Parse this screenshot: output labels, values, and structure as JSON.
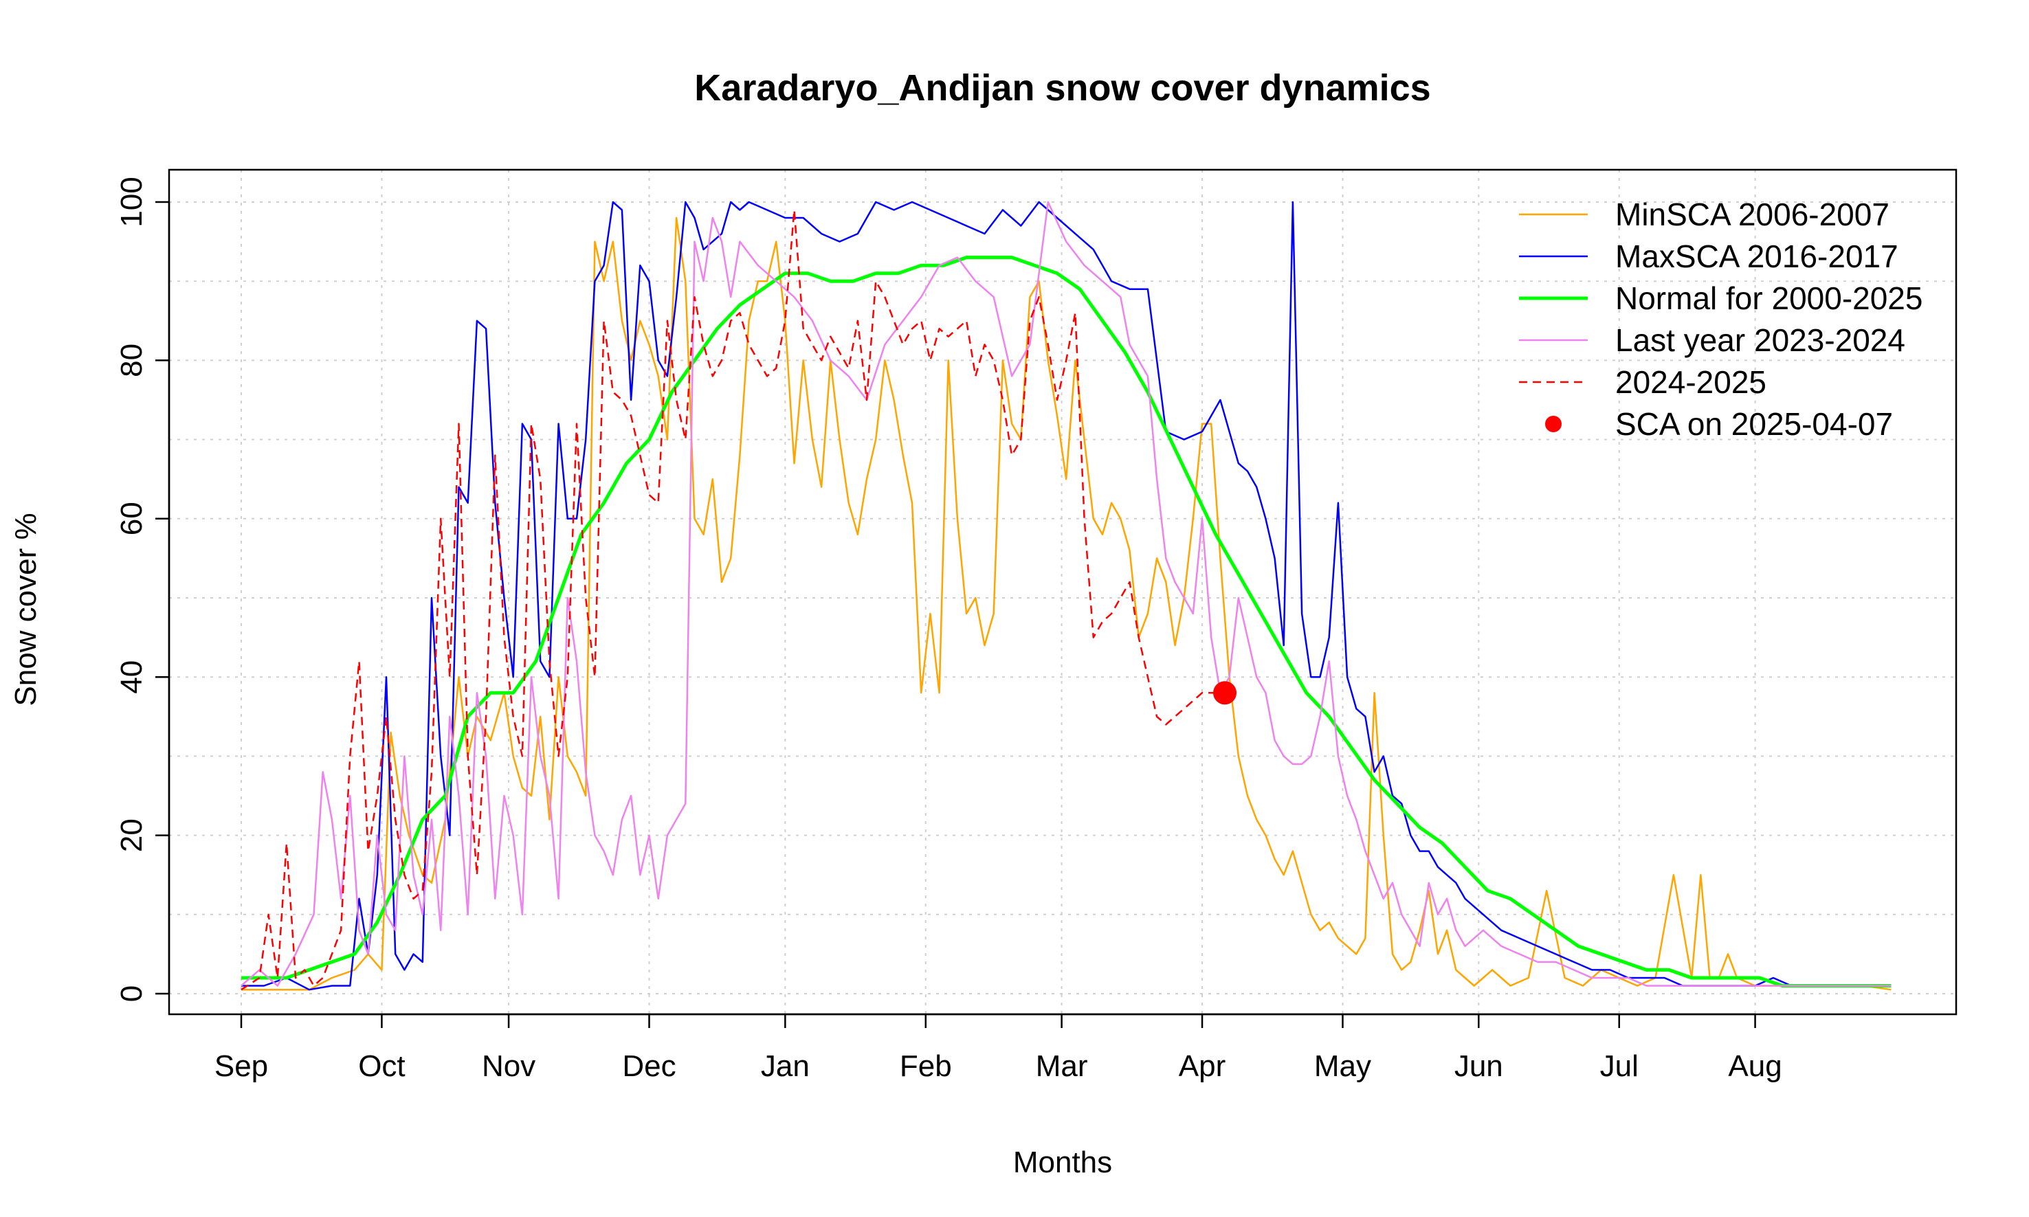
{
  "chart_data": {
    "type": "line",
    "title": "Karadaryo_Andijan snow cover dynamics",
    "xlabel": "Months",
    "ylabel": "Snow cover %",
    "ylim": [
      0,
      100
    ],
    "yticks": [
      0,
      20,
      40,
      60,
      80,
      100
    ],
    "xlim": [
      0,
      365
    ],
    "month_ticks": [
      {
        "label": "Sep",
        "day": 0
      },
      {
        "label": "Oct",
        "day": 31
      },
      {
        "label": "Nov",
        "day": 59
      },
      {
        "label": "Dec",
        "day": 90
      },
      {
        "label": "Jan",
        "day": 120
      },
      {
        "label": "Feb",
        "day": 151
      },
      {
        "label": "Mar",
        "day": 181
      },
      {
        "label": "Apr",
        "day": 212
      },
      {
        "label": "May",
        "day": 243
      },
      {
        "label": "Jun",
        "day": 273
      },
      {
        "label": "Jul",
        "day": 304
      },
      {
        "label": "Aug",
        "day": 334
      }
    ],
    "grid": true,
    "legend_position": "top-right",
    "series": [
      {
        "name": "MinSCA 2006-2007",
        "color": "#FFA500",
        "style": "solid",
        "x": [
          0,
          5,
          10,
          15,
          20,
          25,
          28,
          31,
          33,
          35,
          37,
          40,
          42,
          45,
          48,
          50,
          52,
          55,
          58,
          60,
          62,
          64,
          66,
          68,
          70,
          72,
          74,
          76,
          78,
          80,
          82,
          84,
          86,
          88,
          90,
          92,
          94,
          96,
          98,
          100,
          102,
          104,
          106,
          108,
          110,
          112,
          114,
          116,
          118,
          120,
          122,
          124,
          126,
          128,
          130,
          132,
          134,
          136,
          138,
          140,
          142,
          144,
          146,
          148,
          150,
          152,
          154,
          156,
          158,
          160,
          162,
          164,
          166,
          168,
          170,
          172,
          174,
          176,
          178,
          180,
          182,
          184,
          186,
          188,
          190,
          192,
          194,
          196,
          198,
          200,
          202,
          204,
          206,
          208,
          210,
          212,
          214,
          216,
          218,
          220,
          222,
          224,
          226,
          228,
          230,
          232,
          234,
          236,
          238,
          240,
          242,
          244,
          246,
          248,
          250,
          252,
          254,
          256,
          258,
          260,
          262,
          264,
          266,
          268,
          270,
          272,
          274,
          276,
          278,
          280,
          284,
          288,
          292,
          296,
          300,
          304,
          308,
          312,
          316,
          320,
          322,
          324,
          326,
          328,
          330,
          334,
          340,
          346,
          352,
          358,
          364
        ],
        "values": [
          0.5,
          0.5,
          0.5,
          0.5,
          2,
          3,
          5,
          3,
          33,
          25,
          20,
          15,
          14,
          22,
          40,
          30,
          35,
          32,
          38,
          30,
          26,
          25,
          35,
          22,
          40,
          30,
          28,
          25,
          95,
          90,
          95,
          85,
          80,
          85,
          82,
          78,
          70,
          98,
          90,
          60,
          58,
          65,
          52,
          55,
          68,
          85,
          90,
          90,
          95,
          85,
          67,
          80,
          70,
          64,
          80,
          70,
          62,
          58,
          65,
          70,
          80,
          75,
          68,
          62,
          38,
          48,
          38,
          80,
          60,
          48,
          50,
          44,
          48,
          80,
          72,
          70,
          88,
          90,
          80,
          73,
          65,
          80,
          70,
          60,
          58,
          62,
          60,
          56,
          45,
          48,
          55,
          52,
          44,
          50,
          60,
          72,
          72,
          55,
          40,
          30,
          25,
          22,
          20,
          17,
          15,
          18,
          14,
          10,
          8,
          9,
          7,
          6,
          5,
          7,
          38,
          20,
          5,
          3,
          4,
          8,
          13,
          5,
          8,
          3,
          2,
          1,
          2,
          3,
          2,
          1,
          2,
          13,
          2,
          1,
          3,
          2,
          1,
          2,
          15,
          2,
          15,
          2,
          2,
          5,
          2,
          1,
          1,
          1,
          1,
          1,
          0.5
        ]
      },
      {
        "name": "MaxSCA 2016-2017",
        "color": "#0000FF",
        "style": "solid",
        "x": [
          0,
          5,
          10,
          15,
          20,
          24,
          26,
          28,
          30,
          32,
          34,
          36,
          38,
          40,
          42,
          44,
          46,
          48,
          50,
          52,
          54,
          56,
          58,
          60,
          62,
          64,
          66,
          68,
          70,
          72,
          74,
          76,
          78,
          80,
          82,
          84,
          86,
          88,
          90,
          92,
          94,
          96,
          98,
          100,
          102,
          104,
          106,
          108,
          110,
          112,
          116,
          120,
          124,
          128,
          132,
          136,
          140,
          144,
          148,
          152,
          156,
          160,
          164,
          168,
          172,
          176,
          180,
          184,
          188,
          192,
          196,
          200,
          204,
          208,
          212,
          216,
          220,
          222,
          224,
          226,
          228,
          230,
          232,
          234,
          236,
          238,
          240,
          242,
          244,
          246,
          248,
          250,
          252,
          254,
          256,
          258,
          260,
          262,
          264,
          266,
          268,
          270,
          274,
          278,
          282,
          286,
          290,
          294,
          298,
          302,
          306,
          310,
          314,
          318,
          322,
          326,
          330,
          334,
          338,
          342,
          346,
          350,
          354,
          358,
          364
        ],
        "values": [
          1,
          1,
          2,
          0.5,
          1,
          1,
          12,
          5,
          15,
          40,
          5,
          3,
          5,
          4,
          50,
          30,
          20,
          64,
          62,
          85,
          84,
          62,
          50,
          40,
          72,
          70,
          42,
          40,
          72,
          60,
          60,
          70,
          90,
          92,
          100,
          99,
          75,
          92,
          90,
          80,
          78,
          88,
          100,
          98,
          94,
          95,
          96,
          100,
          99,
          100,
          99,
          98,
          98,
          96,
          95,
          96,
          100,
          99,
          100,
          99,
          98,
          97,
          96,
          99,
          97,
          100,
          98,
          96,
          94,
          90,
          89,
          89,
          71,
          70,
          71,
          75,
          67,
          66,
          64,
          60,
          55,
          44,
          100,
          48,
          40,
          40,
          45,
          62,
          40,
          36,
          35,
          28,
          30,
          25,
          24,
          20,
          18,
          18,
          16,
          15,
          14,
          12,
          10,
          8,
          7,
          6,
          5,
          4,
          3,
          3,
          2,
          2,
          2,
          1,
          1,
          1,
          1,
          1,
          2,
          1,
          1,
          1,
          1,
          1,
          1
        ]
      },
      {
        "name": "Normal for 2000-2025",
        "color": "#00FF00",
        "style": "solid",
        "x": [
          0,
          5,
          10,
          15,
          20,
          25,
          30,
          35,
          40,
          45,
          50,
          55,
          60,
          65,
          70,
          75,
          80,
          85,
          90,
          95,
          100,
          105,
          110,
          115,
          120,
          125,
          130,
          135,
          140,
          145,
          150,
          155,
          160,
          165,
          170,
          175,
          180,
          185,
          190,
          195,
          200,
          205,
          210,
          215,
          220,
          225,
          230,
          235,
          240,
          245,
          250,
          255,
          260,
          265,
          270,
          275,
          280,
          285,
          290,
          295,
          300,
          305,
          310,
          315,
          320,
          325,
          330,
          335,
          340,
          345,
          350,
          355,
          360,
          364
        ],
        "values": [
          2,
          2,
          2,
          3,
          4,
          5,
          9,
          15,
          22,
          25,
          35,
          38,
          38,
          42,
          50,
          58,
          62,
          67,
          70,
          76,
          80,
          84,
          87,
          89,
          91,
          91,
          90,
          90,
          91,
          91,
          92,
          92,
          93,
          93,
          93,
          92,
          91,
          89,
          85,
          81,
          76,
          70,
          64,
          58,
          53,
          48,
          43,
          38,
          35,
          31,
          27,
          24,
          21,
          19,
          16,
          13,
          12,
          10,
          8,
          6,
          5,
          4,
          3,
          3,
          2,
          2,
          2,
          2,
          1,
          1,
          1,
          1,
          1,
          1
        ]
      },
      {
        "name": "Last year 2023-2024",
        "color": "#EE82EE",
        "style": "solid",
        "x": [
          0,
          4,
          8,
          12,
          16,
          18,
          20,
          22,
          24,
          26,
          28,
          30,
          32,
          34,
          36,
          38,
          40,
          42,
          44,
          46,
          48,
          50,
          52,
          54,
          56,
          58,
          60,
          62,
          64,
          66,
          68,
          70,
          72,
          74,
          76,
          78,
          80,
          82,
          84,
          86,
          88,
          90,
          92,
          94,
          96,
          98,
          100,
          102,
          104,
          106,
          108,
          110,
          114,
          118,
          122,
          126,
          130,
          134,
          138,
          142,
          146,
          150,
          154,
          158,
          162,
          166,
          170,
          174,
          178,
          182,
          186,
          190,
          194,
          196,
          198,
          200,
          202,
          204,
          206,
          208,
          210,
          212,
          214,
          216,
          218,
          220,
          222,
          224,
          226,
          228,
          230,
          232,
          234,
          236,
          238,
          240,
          242,
          244,
          246,
          248,
          250,
          252,
          254,
          256,
          258,
          260,
          262,
          264,
          266,
          268,
          270,
          274,
          278,
          282,
          286,
          290,
          294,
          298,
          302,
          306,
          310,
          314,
          318,
          322,
          326,
          330,
          334,
          338,
          342,
          346,
          350,
          354,
          358,
          364
        ],
        "values": [
          1,
          3,
          1,
          5,
          10,
          28,
          22,
          12,
          25,
          8,
          5,
          20,
          10,
          8,
          30,
          15,
          10,
          22,
          8,
          35,
          25,
          10,
          38,
          30,
          12,
          25,
          20,
          10,
          40,
          30,
          25,
          12,
          50,
          42,
          28,
          20,
          18,
          15,
          22,
          25,
          15,
          20,
          12,
          20,
          22,
          24,
          95,
          90,
          98,
          95,
          88,
          95,
          92,
          90,
          88,
          85,
          80,
          78,
          75,
          82,
          85,
          88,
          92,
          93,
          90,
          88,
          78,
          82,
          100,
          95,
          92,
          90,
          88,
          82,
          80,
          78,
          65,
          55,
          52,
          50,
          48,
          60,
          45,
          38,
          40,
          50,
          45,
          40,
          38,
          32,
          30,
          29,
          29,
          30,
          35,
          42,
          30,
          25,
          22,
          18,
          15,
          12,
          14,
          10,
          8,
          6,
          14,
          10,
          12,
          8,
          6,
          8,
          6,
          5,
          4,
          4,
          3,
          2,
          2,
          2,
          1,
          1,
          1,
          1,
          1,
          1,
          1,
          1,
          1,
          1,
          1,
          1,
          1,
          1
        ]
      },
      {
        "name": "2024-2025",
        "color": "#FF0000",
        "style": "dashed",
        "x": [
          0,
          4,
          6,
          8,
          10,
          12,
          14,
          16,
          18,
          20,
          22,
          24,
          26,
          28,
          30,
          32,
          34,
          36,
          38,
          40,
          42,
          44,
          46,
          48,
          50,
          52,
          54,
          56,
          58,
          60,
          62,
          64,
          66,
          68,
          70,
          72,
          74,
          76,
          78,
          80,
          82,
          84,
          86,
          88,
          90,
          92,
          94,
          96,
          98,
          100,
          102,
          104,
          106,
          108,
          110,
          112,
          114,
          116,
          118,
          120,
          122,
          124,
          126,
          128,
          130,
          132,
          134,
          136,
          138,
          140,
          142,
          144,
          146,
          148,
          150,
          152,
          154,
          156,
          158,
          160,
          162,
          164,
          166,
          168,
          170,
          172,
          174,
          176,
          178,
          180,
          182,
          184,
          186,
          188,
          190,
          192,
          194,
          196,
          198,
          200,
          202,
          204,
          206,
          208,
          210,
          212,
          214,
          216
        ],
        "values": [
          0.5,
          2,
          10,
          2,
          19,
          2,
          3,
          1,
          2,
          5,
          8,
          30,
          42,
          18,
          25,
          35,
          22,
          15,
          12,
          13,
          28,
          60,
          40,
          72,
          30,
          15,
          35,
          68,
          45,
          35,
          30,
          72,
          65,
          42,
          30,
          40,
          72,
          50,
          40,
          85,
          76,
          75,
          73,
          68,
          63,
          62,
          85,
          75,
          70,
          88,
          82,
          78,
          80,
          85,
          86,
          82,
          80,
          78,
          79,
          85,
          99,
          84,
          82,
          80,
          83,
          81,
          79,
          85,
          75,
          90,
          88,
          85,
          82,
          84,
          85,
          80,
          84,
          83,
          84,
          85,
          78,
          82,
          80,
          75,
          68,
          70,
          85,
          88,
          82,
          75,
          80,
          86,
          60,
          45,
          47,
          48,
          50,
          52,
          45,
          40,
          35,
          34,
          35,
          36,
          37,
          38,
          38,
          38
        ]
      }
    ],
    "current_point": {
      "name": "SCA on 2025-04-07",
      "color": "#FF0000",
      "x": 217,
      "y": 38
    }
  }
}
